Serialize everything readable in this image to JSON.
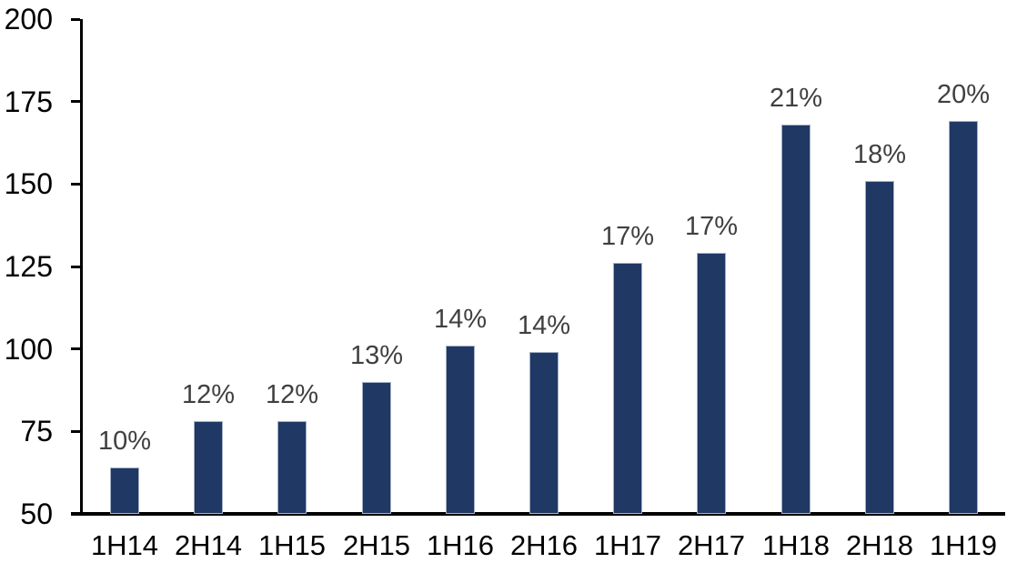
{
  "chart_data": {
    "type": "bar",
    "title": "",
    "xlabel": "",
    "ylabel": "",
    "categories": [
      "1H14",
      "2H14",
      "1H15",
      "2H15",
      "1H16",
      "2H16",
      "1H17",
      "2H17",
      "1H18",
      "2H18",
      "1H19"
    ],
    "values": [
      64,
      78,
      78,
      90,
      101,
      99,
      126,
      129,
      168,
      151,
      169
    ],
    "bar_labels": [
      "10%",
      "12%",
      "12%",
      "13%",
      "14%",
      "14%",
      "17%",
      "17%",
      "21%",
      "18%",
      "20%"
    ],
    "ylim": [
      50,
      200
    ],
    "yticks": [
      50,
      75,
      100,
      125,
      150,
      175,
      200
    ],
    "grid": false,
    "legend_position": "none",
    "colors": {
      "bar_fill": "#1f3864",
      "bar_border": "#a3b0c5",
      "axis": "#000000",
      "bar_label_text": "#404040",
      "axis_label_text": "#000000",
      "background": "#ffffff"
    }
  }
}
